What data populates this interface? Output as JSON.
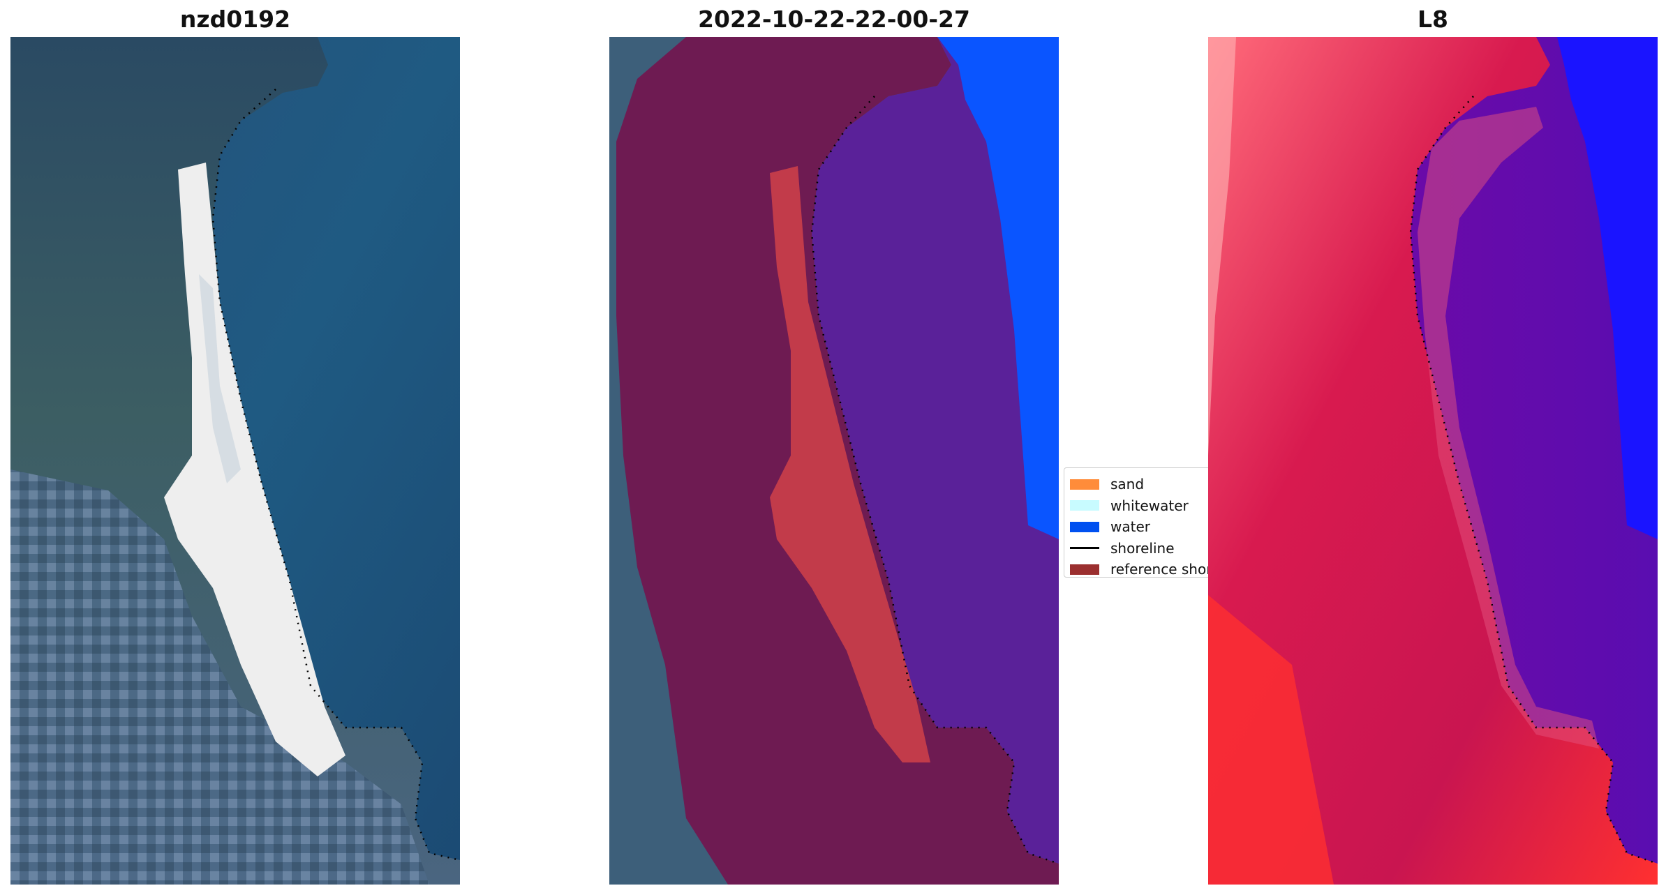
{
  "panels": [
    {
      "title": "nzd0192"
    },
    {
      "title": "2022-10-22-22-00-27"
    },
    {
      "title": "L8"
    }
  ],
  "legend": {
    "items": [
      {
        "label": "sand",
        "color": "#ff8c3a"
      },
      {
        "label": "whitewater",
        "color": "#c8fbff"
      },
      {
        "label": "water",
        "color": "#0050f0"
      },
      {
        "label": "shoreline",
        "color": "#000000"
      },
      {
        "label": "reference shoreline",
        "color": "#9b2f2f"
      }
    ]
  },
  "colors": {
    "rgb_ocean": "#1f4e7a",
    "rgb_beach": "#f2f2f2",
    "overlay_land": "#6e1b52",
    "overlay_ocean": "#5a2199",
    "overlay_sand": "#c23b4a",
    "overlay_water": "#0a55ff",
    "ndwi_land": "#d0164e",
    "ndwi_ocean": "#5a0db0",
    "ndwi_water": "#1a14ff"
  }
}
